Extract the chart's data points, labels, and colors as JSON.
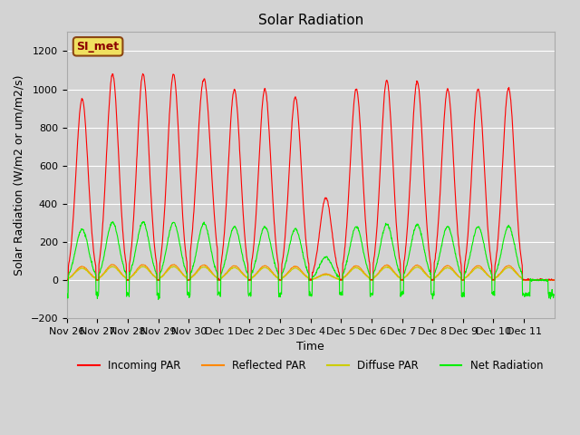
{
  "title": "Solar Radiation",
  "xlabel": "Time",
  "ylabel": "Solar Radiation (W/m2 or um/m2/s)",
  "ylim": [
    -200,
    1300
  ],
  "yticks": [
    -200,
    0,
    200,
    400,
    600,
    800,
    1000,
    1200
  ],
  "station_label": "SI_met",
  "plot_bg_color": "#d3d3d3",
  "fig_bg_color": "#d3d3d3",
  "grid_color": "#ffffff",
  "legend_entries": [
    "Incoming PAR",
    "Reflected PAR",
    "Diffuse PAR",
    "Net Radiation"
  ],
  "legend_colors": [
    "#ff0000",
    "#ff8800",
    "#cccc00",
    "#00ee00"
  ],
  "x_labels": [
    "Nov 26",
    "Nov 27",
    "Nov 28",
    "Nov 29",
    "Nov 30",
    "Dec 1",
    "Dec 2",
    "Dec 3",
    "Dec 4",
    "Dec 5",
    "Dec 6",
    "Dec 7",
    "Dec 8",
    "Dec 9",
    "Dec 10",
    "Dec 11"
  ],
  "incoming_color": "#ff0000",
  "reflected_color": "#ff8800",
  "diffuse_color": "#cccc00",
  "net_color": "#00ee00",
  "day_peaks_incoming": [
    950,
    1080,
    1080,
    1080,
    1055,
    1000,
    1000,
    960,
    430,
    1000,
    1045,
    1040,
    1000,
    1000,
    1005,
    0
  ],
  "net_negative": -75,
  "net_peak_ratio": 0.28,
  "reflected_peak_ratio": 0.075,
  "diffuse_peak_ratio": 0.065
}
